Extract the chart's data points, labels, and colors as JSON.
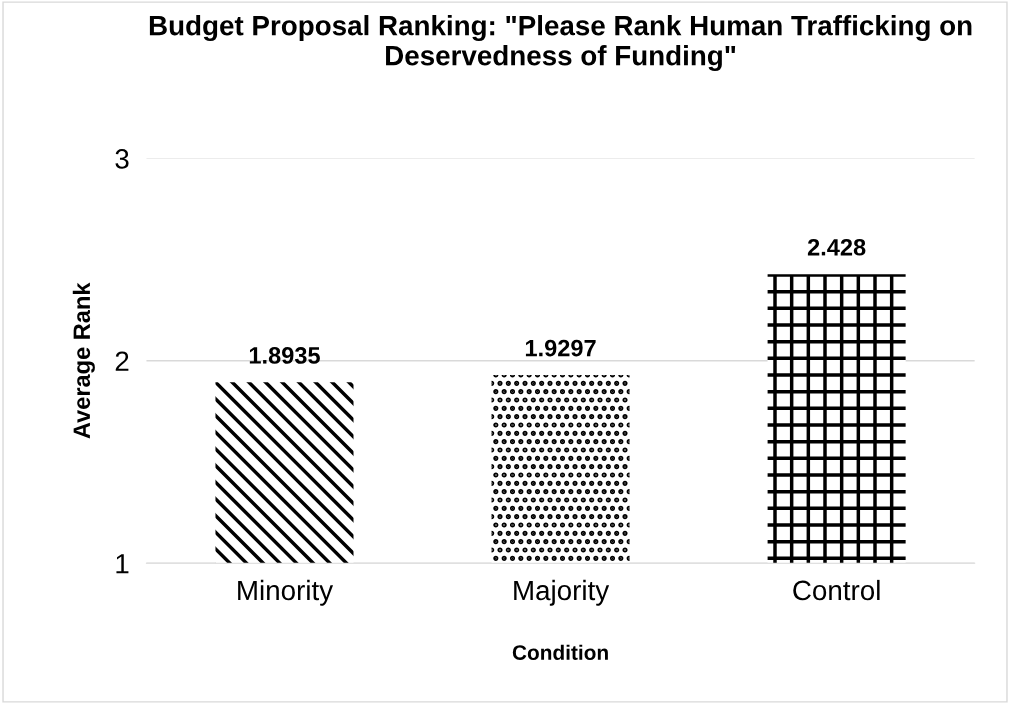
{
  "chart_data": {
    "type": "bar",
    "title": "Budget Proposal Ranking: \"Please Rank Human Trafficking on Deservedness of Funding\"",
    "xlabel": "Condition",
    "ylabel": "Average Rank",
    "categories": [
      "Minority",
      "Majority",
      "Control"
    ],
    "values": [
      1.8935,
      1.9297,
      2.428
    ],
    "colors": [
      "#000000",
      "#000000",
      "#000000"
    ],
    "ylim": [
      1,
      3
    ],
    "yticks": [
      1,
      2,
      3
    ],
    "grid": "y",
    "data_labels": true
  }
}
